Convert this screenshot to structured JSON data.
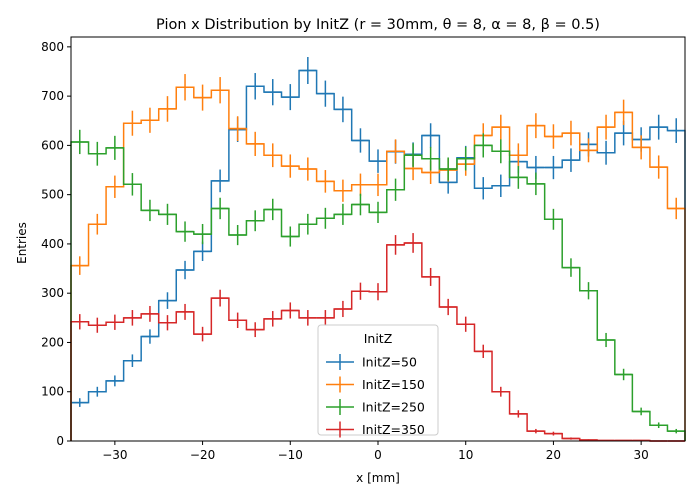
{
  "chart_data": {
    "type": "histogram-step",
    "title": "Pion x Distribution by InitZ (r = 30mm, θ = 8, α = 8, β = 0.5)",
    "xlabel": "x [mm]",
    "ylabel": "Entries",
    "xlim": [
      -35,
      35
    ],
    "ylim": [
      0,
      820
    ],
    "xticks": [
      -30,
      -20,
      -10,
      0,
      10,
      20,
      30
    ],
    "yticks": [
      0,
      100,
      200,
      300,
      400,
      500,
      600,
      700,
      800
    ],
    "bin_edges": [
      -35,
      -33,
      -31,
      -29,
      -27,
      -25,
      -23,
      -21,
      -19,
      -17,
      -15,
      -13,
      -11,
      -9,
      -7,
      -5,
      -3,
      -1,
      1,
      3,
      5,
      7,
      9,
      11,
      13,
      15,
      17,
      19,
      21,
      23,
      25,
      27,
      29,
      31,
      33,
      35
    ],
    "legend": {
      "title": "InitZ",
      "position": "lower center"
    },
    "series": [
      {
        "name": "InitZ=50",
        "color": "#1f77b4",
        "values": [
          78,
          100,
          122,
          163,
          212,
          285,
          347,
          385,
          528,
          632,
          720,
          708,
          698,
          752,
          705,
          673,
          610,
          568,
          587,
          582,
          620,
          525,
          575,
          513,
          518,
          567,
          555,
          555,
          570,
          602,
          585,
          625,
          612,
          637,
          630
        ]
      },
      {
        "name": "InitZ=150",
        "color": "#ff7f0e",
        "values": [
          356,
          440,
          516,
          645,
          651,
          674,
          718,
          697,
          712,
          634,
          603,
          580,
          558,
          552,
          527,
          508,
          520,
          520,
          588,
          553,
          545,
          550,
          562,
          620,
          637,
          580,
          640,
          618,
          625,
          590,
          637,
          667,
          596,
          556,
          472
        ]
      },
      {
        "name": "InitZ=250",
        "color": "#2ca02c",
        "values": [
          607,
          583,
          595,
          521,
          468,
          460,
          425,
          420,
          472,
          418,
          447,
          470,
          415,
          440,
          452,
          460,
          480,
          464,
          510,
          580,
          573,
          552,
          573,
          600,
          588,
          535,
          522,
          450,
          352,
          305,
          205,
          135,
          60,
          32,
          20
        ]
      },
      {
        "name": "InitZ=350",
        "color": "#d62728",
        "values": [
          242,
          235,
          241,
          250,
          258,
          240,
          262,
          217,
          290,
          245,
          226,
          248,
          265,
          250,
          250,
          268,
          304,
          303,
          398,
          402,
          333,
          272,
          237,
          182,
          100,
          55,
          20,
          15,
          5,
          2,
          1,
          1,
          1,
          0,
          0
        ]
      }
    ]
  }
}
